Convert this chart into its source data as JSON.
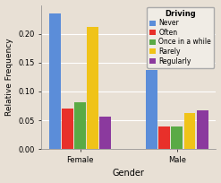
{
  "title": "",
  "xlabel": "Gender",
  "ylabel": "Relative Frequency",
  "categories": [
    "Female",
    "Male"
  ],
  "legend_title": "Driving",
  "legend_labels": [
    "Never",
    "Often",
    "Once in a while",
    "Rarely",
    "Regularly"
  ],
  "bar_colors": [
    "#5b8dd9",
    "#e8302a",
    "#5aaa45",
    "#f0c318",
    "#8b3a9e"
  ],
  "values": {
    "Female": [
      0.235,
      0.07,
      0.082,
      0.212,
      0.057
    ],
    "Male": [
      0.138,
      0.04,
      0.04,
      0.063,
      0.068
    ]
  },
  "ylim": [
    0,
    0.25
  ],
  "yticks": [
    0,
    0.05,
    0.1,
    0.15,
    0.2
  ],
  "background_color": "#e8e0d5",
  "figure_bg": "#e8e0d5",
  "grid_color": "#ffffff",
  "figsize": [
    2.47,
    2.04
  ],
  "dpi": 100
}
